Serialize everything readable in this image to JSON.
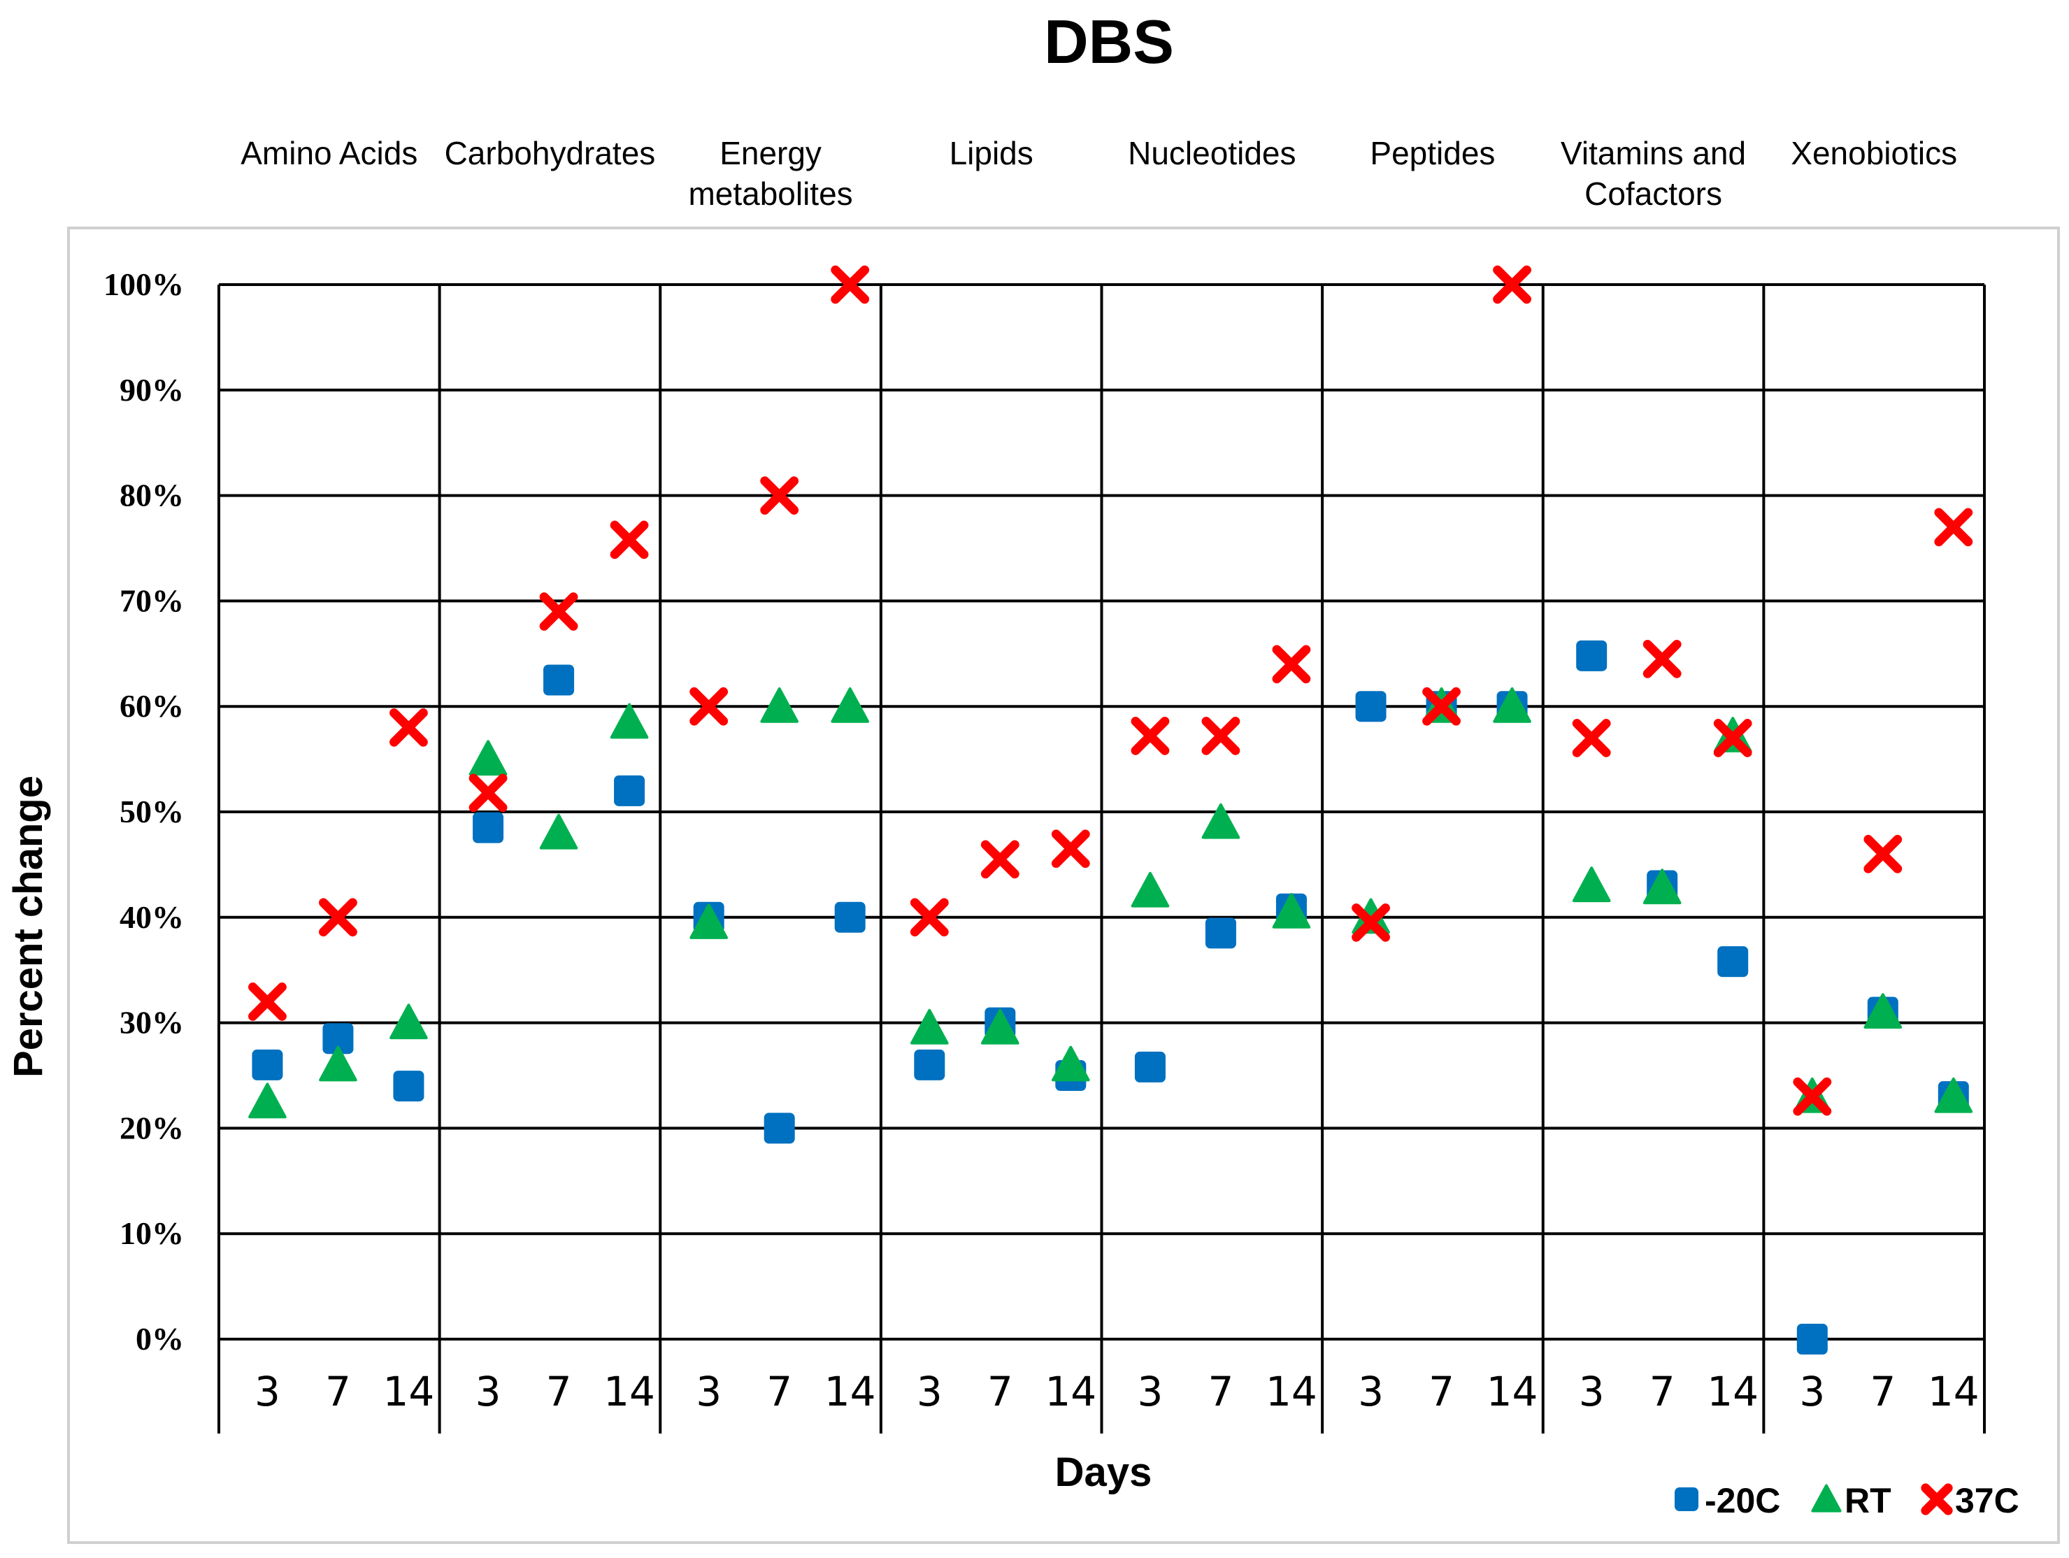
{
  "chart_data": {
    "type": "scatter",
    "title": "DBS",
    "ylabel": "Percent change",
    "xlabel": "Days",
    "ylim": [
      0,
      100
    ],
    "yticks": [
      "0%",
      "10%",
      "20%",
      "30%",
      "40%",
      "50%",
      "60%",
      "70%",
      "80%",
      "90%",
      "100%"
    ],
    "days": [
      "3",
      "7",
      "14"
    ],
    "groups": [
      "Amino Acids",
      "Carbohydrates",
      "Energy\nmetabolites",
      "Lipids",
      "Nucleotides",
      "Peptides",
      "Vitamins and\nCofactors",
      "Xenobiotics"
    ],
    "series": [
      {
        "name": "-20C",
        "marker": "square",
        "color": "#0070C0",
        "values": [
          [
            26,
            28.5,
            24
          ],
          [
            48.5,
            62.5,
            52
          ],
          [
            40,
            20,
            40
          ],
          [
            26,
            30,
            25
          ],
          [
            25.8,
            38.5,
            40.8
          ],
          [
            60,
            60,
            60
          ],
          [
            64.8,
            43,
            35.8
          ],
          [
            0,
            31,
            23
          ]
        ]
      },
      {
        "name": "RT",
        "marker": "triangle",
        "color": "#00B050",
        "values": [
          [
            22.5,
            26,
            30
          ],
          [
            55,
            48,
            58.5
          ],
          [
            39.5,
            60,
            60
          ],
          [
            29.5,
            29.5,
            26
          ],
          [
            42.5,
            49,
            40.5
          ],
          [
            40,
            60,
            60
          ],
          [
            43,
            42.8,
            57.2
          ],
          [
            23,
            31,
            23
          ]
        ]
      },
      {
        "name": "37C",
        "marker": "x",
        "color": "#FF0000",
        "values": [
          [
            32,
            40,
            58
          ],
          [
            51.8,
            69,
            75.8
          ],
          [
            60,
            80,
            100
          ],
          [
            40,
            45.5,
            46.5
          ],
          [
            57.2,
            57.2,
            64
          ],
          [
            39.5,
            60,
            100
          ],
          [
            57,
            64.5,
            57
          ],
          [
            23,
            46,
            77
          ]
        ]
      }
    ],
    "legend": {
      "position": "bottom-right",
      "entries": [
        "-20C",
        "RT",
        "37C"
      ]
    }
  }
}
